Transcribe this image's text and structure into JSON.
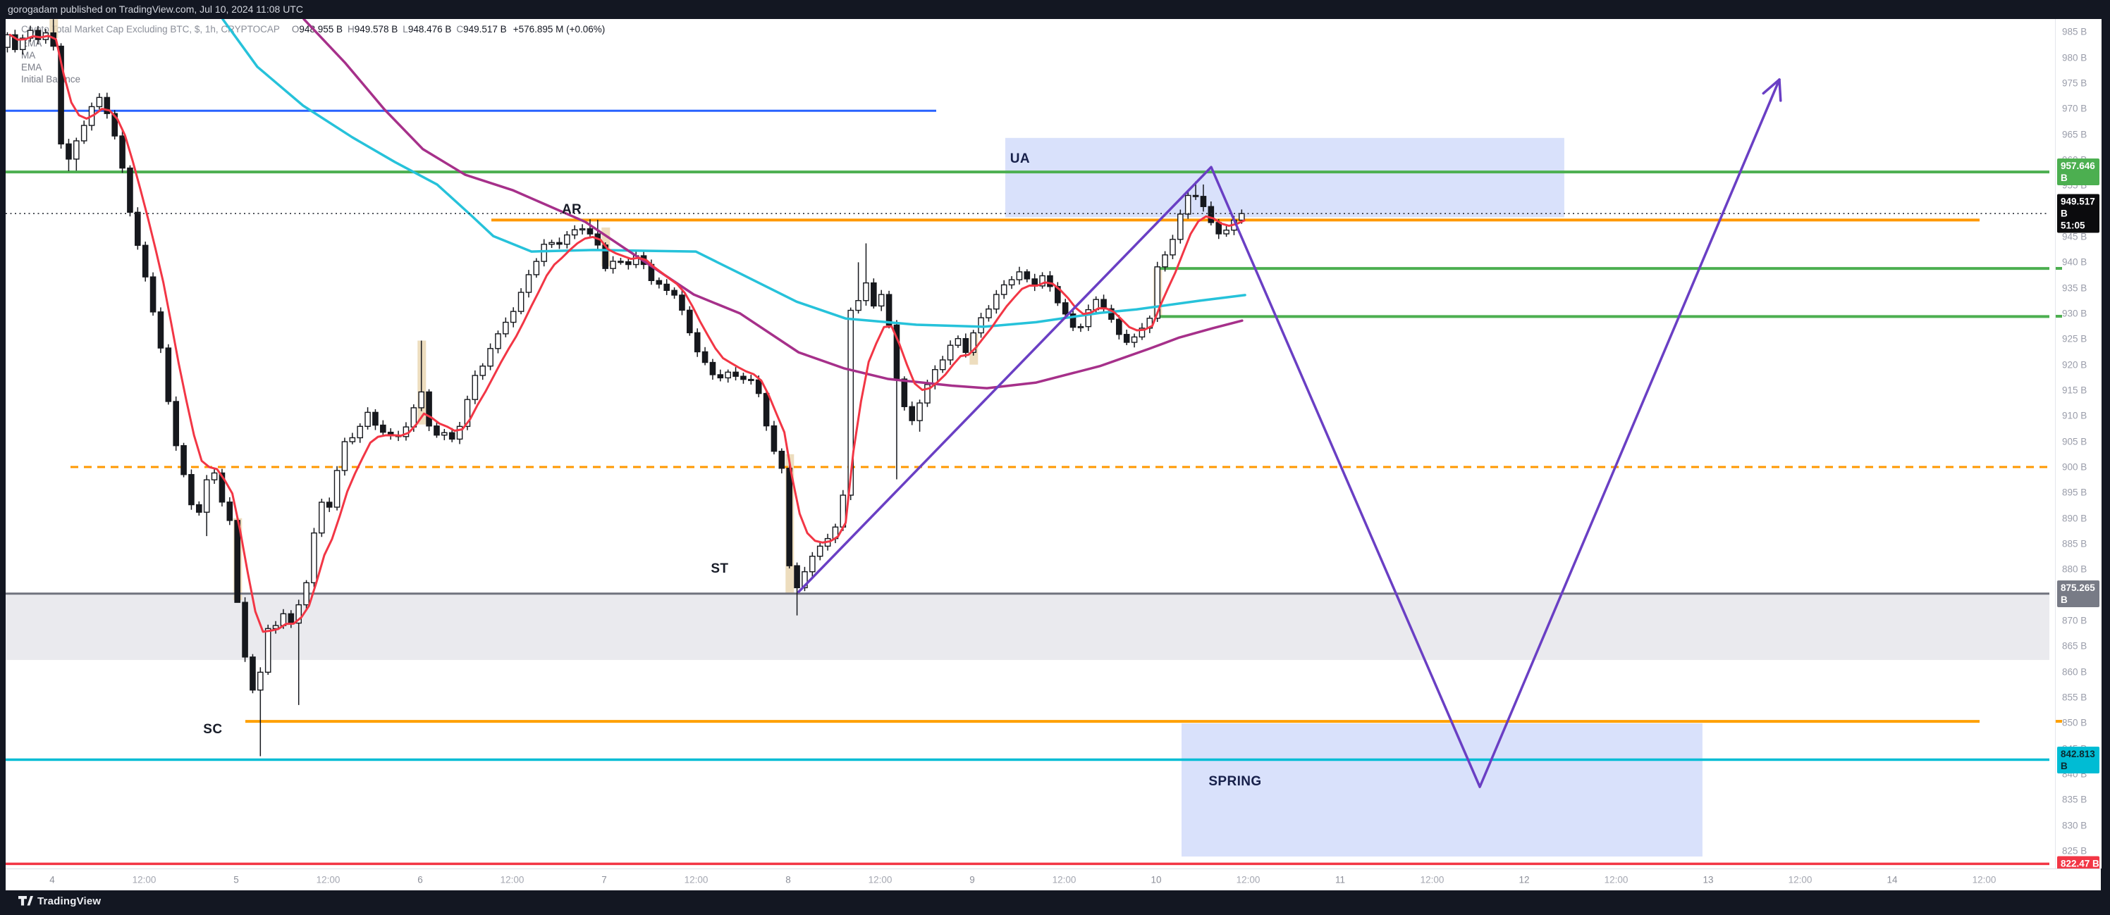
{
  "top_bar": {
    "text": "gorogadam published on TradingView.com, Jul 10, 2024 11:08 UTC"
  },
  "footer": {
    "brand": "TradingView"
  },
  "legend": {
    "title": "Crypto Total Market Cap Excluding BTC, $, 1h, CRYPTOCAP",
    "o_k": "O",
    "o_v": "948.955 B",
    "h_k": "H",
    "h_v": "949.578 B",
    "l_k": "L",
    "l_v": "948.476 B",
    "c_k": "C",
    "c_v": "949.517 B",
    "change": "+576.895 M (+0.06%)",
    "indicators": [
      "EMA",
      "MA",
      "EMA",
      "Initial Balance"
    ]
  },
  "annotations": {
    "ua": "UA",
    "ar": "AR",
    "st": "ST",
    "sc": "SC",
    "spring": "SPRING"
  },
  "chart_data": {
    "type": "candlestick",
    "title": "Crypto Total Market Cap Excluding BTC",
    "currency": "$",
    "interval": "1h",
    "exchange": "CRYPTOCAP",
    "last_bar": {
      "open": 948.955,
      "high": 949.578,
      "low": 948.476,
      "close": 949.517,
      "change": "+576.895 M",
      "change_pct": "+0.06%"
    },
    "current_price": 949.517,
    "countdown": "51:05",
    "ylim": [
      822,
      989
    ],
    "xlabel_days": [
      "Jul 4",
      "Jul 14"
    ],
    "grid": false,
    "price_path": [
      [
        -0.25,
        982
      ],
      [
        -0.21,
        984
      ],
      [
        -0.17,
        981.5
      ],
      [
        -0.125,
        983.5
      ],
      [
        -0.08,
        985
      ],
      [
        -0.04,
        984
      ],
      [
        0,
        985
      ],
      [
        0.04,
        983
      ],
      [
        0.08,
        964
      ],
      [
        0.125,
        960
      ],
      [
        0.17,
        963.5
      ],
      [
        0.21,
        967
      ],
      [
        0.25,
        970
      ],
      [
        0.29,
        972
      ],
      [
        0.33,
        970
      ],
      [
        0.37,
        965.5
      ],
      [
        0.42,
        958
      ],
      [
        0.46,
        950
      ],
      [
        0.5,
        943
      ],
      [
        0.54,
        937
      ],
      [
        0.58,
        931
      ],
      [
        0.62,
        924
      ],
      [
        0.66,
        914
      ],
      [
        0.7,
        906
      ],
      [
        0.74,
        900
      ],
      [
        0.78,
        894
      ],
      [
        0.82,
        890
      ],
      [
        0.86,
        895
      ],
      [
        0.9,
        900.5
      ],
      [
        0.93,
        897
      ],
      [
        0.96,
        893
      ],
      [
        1.0,
        889
      ],
      [
        1.04,
        874
      ],
      [
        1.08,
        864
      ],
      [
        1.12,
        857
      ],
      [
        1.15,
        853
      ],
      [
        1.18,
        866
      ],
      [
        1.22,
        870
      ],
      [
        1.26,
        868
      ],
      [
        1.3,
        872
      ],
      [
        1.34,
        869
      ],
      [
        1.38,
        873
      ],
      [
        1.42,
        878
      ],
      [
        1.46,
        888
      ],
      [
        1.5,
        893
      ],
      [
        1.53,
        888.5
      ],
      [
        1.56,
        899
      ],
      [
        1.6,
        900
      ],
      [
        1.64,
        907
      ],
      [
        1.68,
        905
      ],
      [
        1.72,
        909
      ],
      [
        1.76,
        910.5
      ],
      [
        1.8,
        908
      ],
      [
        1.84,
        907
      ],
      [
        1.88,
        906
      ],
      [
        1.92,
        906.5
      ],
      [
        1.96,
        908
      ],
      [
        2.0,
        911
      ],
      [
        2.04,
        915
      ],
      [
        2.08,
        908
      ],
      [
        2.12,
        905.5
      ],
      [
        2.16,
        907.5
      ],
      [
        2.2,
        905.5
      ],
      [
        2.24,
        906.5
      ],
      [
        2.28,
        912
      ],
      [
        2.32,
        918
      ],
      [
        2.36,
        917.5
      ],
      [
        2.4,
        922
      ],
      [
        2.44,
        925
      ],
      [
        2.48,
        926.5
      ],
      [
        2.53,
        930
      ],
      [
        2.58,
        934
      ],
      [
        2.63,
        938
      ],
      [
        2.67,
        941
      ],
      [
        2.72,
        944
      ],
      [
        2.77,
        943
      ],
      [
        2.82,
        944.5
      ],
      [
        2.87,
        946
      ],
      [
        2.92,
        947.2
      ],
      [
        2.96,
        945.5
      ],
      [
        3.0,
        943.5
      ],
      [
        3.05,
        938.5
      ],
      [
        3.1,
        940.5
      ],
      [
        3.15,
        939
      ],
      [
        3.2,
        941
      ],
      [
        3.25,
        939.5
      ],
      [
        3.3,
        936.5
      ],
      [
        3.36,
        935
      ],
      [
        3.42,
        934
      ],
      [
        3.47,
        929
      ],
      [
        3.52,
        924
      ],
      [
        3.58,
        920
      ],
      [
        3.64,
        917.5
      ],
      [
        3.7,
        918.5
      ],
      [
        3.76,
        918
      ],
      [
        3.82,
        917
      ],
      [
        3.87,
        915
      ],
      [
        3.91,
        909
      ],
      [
        3.95,
        903
      ],
      [
        4.0,
        900
      ],
      [
        4.042,
        881
      ],
      [
        4.08,
        876
      ],
      [
        4.125,
        880
      ],
      [
        4.17,
        883
      ],
      [
        4.21,
        884
      ],
      [
        4.25,
        886
      ],
      [
        4.29,
        888
      ],
      [
        4.33,
        891
      ],
      [
        4.375,
        931
      ],
      [
        4.42,
        933
      ],
      [
        4.46,
        936
      ],
      [
        4.5,
        932
      ],
      [
        4.54,
        934
      ],
      [
        4.58,
        928
      ],
      [
        4.62,
        918
      ],
      [
        4.66,
        912
      ],
      [
        4.71,
        908.5
      ],
      [
        4.75,
        913
      ],
      [
        4.8,
        917
      ],
      [
        4.85,
        920
      ],
      [
        4.9,
        923
      ],
      [
        4.95,
        925
      ],
      [
        5.0,
        922.5
      ],
      [
        5.05,
        926.5
      ],
      [
        5.1,
        930
      ],
      [
        5.17,
        934
      ],
      [
        5.24,
        937
      ],
      [
        5.3,
        938
      ],
      [
        5.36,
        935
      ],
      [
        5.42,
        937
      ],
      [
        5.48,
        934
      ],
      [
        5.54,
        930
      ],
      [
        5.6,
        926.5
      ],
      [
        5.66,
        930
      ],
      [
        5.72,
        933
      ],
      [
        5.78,
        929
      ],
      [
        5.84,
        925.5
      ],
      [
        5.9,
        924.5
      ],
      [
        5.95,
        927
      ],
      [
        6.0,
        929.5
      ],
      [
        6.04,
        938.5
      ],
      [
        6.08,
        941
      ],
      [
        6.12,
        944
      ],
      [
        6.16,
        948
      ],
      [
        6.2,
        953
      ],
      [
        6.24,
        954
      ],
      [
        6.28,
        951.5
      ],
      [
        6.32,
        949
      ],
      [
        6.36,
        946.5
      ],
      [
        6.4,
        944.8
      ],
      [
        6.44,
        947
      ],
      [
        6.48,
        949.517
      ]
    ],
    "wick_overrides": [
      {
        "t": 0.0,
        "high": 987.5
      },
      {
        "t": 0.083,
        "low": 957.8
      },
      {
        "t": 0.125,
        "low": 957.9
      },
      {
        "t": 0.833,
        "low": 886.5
      },
      {
        "t": 1.0,
        "low": 875.5
      },
      {
        "t": 1.125,
        "low": 843.5
      },
      {
        "t": 1.333,
        "low": 853.5
      },
      {
        "t": 2.0,
        "high": 924.7
      },
      {
        "t": 2.917,
        "high": 948.4
      },
      {
        "t": 2.958,
        "high": 948.3
      },
      {
        "t": 4.042,
        "low": 871
      },
      {
        "t": 4.375,
        "high": 940
      },
      {
        "t": 4.417,
        "high": 943.7
      },
      {
        "t": 4.583,
        "low": 897.6
      },
      {
        "t": 4.708,
        "low": 906.9
      },
      {
        "t": 6.208,
        "high": 955.8
      },
      {
        "t": 6.25,
        "high": 955.2
      }
    ],
    "ma_cyan": [
      [
        0.927,
        987.5
      ],
      [
        1.115,
        978.2
      ],
      [
        1.364,
        970.6
      ],
      [
        1.632,
        964.4
      ],
      [
        1.862,
        959.6
      ],
      [
        2.092,
        955.2
      ],
      [
        2.276,
        949.2
      ],
      [
        2.398,
        945.1
      ],
      [
        2.605,
        942.1
      ],
      [
        2.946,
        942.4
      ],
      [
        3.498,
        942.1
      ],
      [
        3.739,
        937.8
      ],
      [
        4.046,
        932.3
      ],
      [
        4.314,
        929.0
      ],
      [
        4.697,
        927.8
      ],
      [
        5.061,
        927.4
      ],
      [
        5.348,
        928.3
      ],
      [
        5.693,
        930.1
      ],
      [
        5.893,
        930.8
      ],
      [
        6.237,
        932.5
      ],
      [
        6.483,
        933.6
      ]
    ],
    "ma_magenta": [
      [
        1.368,
        987.5
      ],
      [
        1.594,
        978.9
      ],
      [
        1.805,
        969.9
      ],
      [
        2.015,
        962.1
      ],
      [
        2.245,
        957.1
      ],
      [
        2.502,
        954.1
      ],
      [
        2.897,
        947.9
      ],
      [
        3.487,
        933.7
      ],
      [
        3.739,
        930.0
      ],
      [
        4.057,
        922.4
      ],
      [
        4.302,
        919.3
      ],
      [
        4.544,
        917.2
      ],
      [
        4.889,
        915.9
      ],
      [
        5.08,
        915.4
      ],
      [
        5.348,
        916.5
      ],
      [
        5.693,
        919.7
      ],
      [
        5.962,
        923.1
      ],
      [
        6.126,
        925.3
      ],
      [
        6.306,
        927.1
      ],
      [
        6.467,
        928.6
      ]
    ],
    "ema_fast_period": 5,
    "initial_balance_boxes": [
      {
        "t": 0,
        "hi": 987.5,
        "lo": 983.8
      },
      {
        "t": 1,
        "hi": 890,
        "lo": 874
      },
      {
        "t": 2,
        "hi": 924.7,
        "lo": 908.3
      },
      {
        "t": 3,
        "hi": 946.8,
        "lo": 939.2
      },
      {
        "t": 4,
        "hi": 902.5,
        "lo": 875.3
      },
      {
        "t": 5,
        "hi": 926,
        "lo": 920
      },
      {
        "t": 6,
        "hi": 938.8,
        "lo": 929.3
      }
    ],
    "band": {
      "name": "gray-zone",
      "top": 875.265,
      "bottom": 862.3,
      "x1": 8,
      "x2": 2907,
      "fill": "#eaeaee"
    },
    "levels": [
      {
        "name": "blue-resistance",
        "price": 969.6,
        "x1": 8,
        "x2": 1328,
        "color": "#2962ff",
        "w": 3
      },
      {
        "name": "green-957",
        "price": 957.646,
        "x1": 8,
        "x2": 2907,
        "color": "#4caf50",
        "w": 4
      },
      {
        "name": "orange-ar",
        "price": 948.25,
        "x1": 697,
        "x2": 2808,
        "color": "#ff9800",
        "w": 4
      },
      {
        "name": "green-ib-high",
        "price": 938.8,
        "x1": 1642,
        "x2": 2907,
        "color": "#4caf50",
        "w": 4
      },
      {
        "name": "green-ib-low",
        "price": 929.4,
        "x1": 1642,
        "x2": 2907,
        "color": "#4caf50",
        "w": 4
      },
      {
        "name": "orange-dashed-900",
        "price": 900,
        "x1": 100,
        "x2": 2907,
        "color": "#ff9800",
        "w": 3,
        "dash": "11 8"
      },
      {
        "name": "gray-875",
        "price": 875.265,
        "x1": 8,
        "x2": 2907,
        "color": "#70737e",
        "w": 3
      },
      {
        "name": "orange-850",
        "price": 850.3,
        "x1": 348,
        "x2": 2808,
        "color": "#ffa000",
        "w": 4
      },
      {
        "name": "cyan-842",
        "price": 842.813,
        "x1": 8,
        "x2": 2907,
        "color": "#00bcd4",
        "w": 3.5
      },
      {
        "name": "red-822",
        "price": 822.47,
        "x1": 8,
        "x2": 2907,
        "color": "#f23645",
        "w": 3.5
      }
    ],
    "boxes": [
      {
        "name": "ua-box",
        "t1": 5.18,
        "t2": 8.218,
        "p1": 964.3,
        "p2": 948.8,
        "fill": "#d9e1fb"
      },
      {
        "name": "spring-box",
        "t1": 6.138,
        "t2": 8.969,
        "p1": 849.9,
        "p2": 823.9,
        "fill": "#d9e1fb"
      }
    ],
    "zigzag": {
      "color": "#6a3fc4",
      "w": 3.5,
      "arrow": true,
      "points": [
        [
          4.057,
          875.6
        ],
        [
          6.299,
          958.6
        ],
        [
          7.759,
          837.5
        ],
        [
          9.387,
          975.7
        ]
      ]
    },
    "label_pos": [
      {
        "id": "anno-ua",
        "t": 5.26,
        "p": 960.1
      },
      {
        "id": "anno-ar",
        "t": 2.824,
        "p": 950.2
      },
      {
        "id": "anno-st",
        "t": 3.628,
        "p": 880.0
      },
      {
        "id": "anno-sc",
        "t": 0.873,
        "p": 848.6
      },
      {
        "id": "anno-spring",
        "t": 6.429,
        "p": 838.5
      }
    ],
    "price_ticks": [
      "985 B",
      "980 B",
      "975 B",
      "970 B",
      "965 B",
      "960 B",
      "955 B",
      "950 B",
      "945 B",
      "940 B",
      "935 B",
      "930 B",
      "925 B",
      "920 B",
      "915 B",
      "910 B",
      "905 B",
      "900 B",
      "895 B",
      "890 B",
      "885 B",
      "880 B",
      "875 B",
      "870 B",
      "865 B",
      "860 B",
      "855 B",
      "850 B",
      "845 B",
      "840 B",
      "835 B",
      "830 B",
      "825 B"
    ],
    "price_tick_values": [
      985,
      980,
      975,
      970,
      965,
      960,
      955,
      950,
      945,
      940,
      935,
      930,
      925,
      920,
      915,
      910,
      905,
      900,
      895,
      890,
      885,
      880,
      875,
      870,
      865,
      860,
      855,
      850,
      845,
      840,
      835,
      830,
      825
    ],
    "badges": [
      {
        "name": "level-badge-green",
        "text": "957.646 B",
        "price": 957.646,
        "bg": "#4caf50",
        "fg": "#ffffff"
      },
      {
        "name": "current-price-badge",
        "text": "949.517 B",
        "sub": "51:05",
        "price": 949.517,
        "bg": "#0b0b0d",
        "fg": "#ffffff"
      },
      {
        "name": "level-badge-gray",
        "text": "875.265 B",
        "price": 875.265,
        "bg": "#787b86",
        "fg": "#ffffff"
      },
      {
        "name": "level-badge-cyan",
        "text": "842.813 B",
        "price": 842.813,
        "bg": "#00bcd4",
        "fg": "#0b2a30"
      },
      {
        "name": "level-badge-red",
        "text": "822.47 B",
        "price": 822.47,
        "bg": "#f23645",
        "fg": "#ffffff"
      }
    ],
    "side_ticks": [
      {
        "price": 938.8,
        "color": "#4caf50"
      },
      {
        "price": 929.4,
        "color": "#4caf50"
      },
      {
        "price": 850.3,
        "color": "#ffa000"
      }
    ],
    "time_ticks": [
      {
        "label": "4",
        "t": 0,
        "major": true
      },
      {
        "label": "12:00",
        "t": 0.5
      },
      {
        "label": "5",
        "t": 1,
        "major": true
      },
      {
        "label": "12:00",
        "t": 1.5
      },
      {
        "label": "6",
        "t": 2,
        "major": true
      },
      {
        "label": "12:00",
        "t": 2.5
      },
      {
        "label": "7",
        "t": 3,
        "major": true
      },
      {
        "label": "12:00",
        "t": 3.5
      },
      {
        "label": "8",
        "t": 4,
        "major": true
      },
      {
        "label": "12:00",
        "t": 4.5
      },
      {
        "label": "9",
        "t": 5,
        "major": true
      },
      {
        "label": "12:00",
        "t": 5.5
      },
      {
        "label": "10",
        "t": 6,
        "major": true
      },
      {
        "label": "12:00",
        "t": 6.5
      },
      {
        "label": "11",
        "t": 7,
        "major": true
      },
      {
        "label": "12:00",
        "t": 7.5
      },
      {
        "label": "12",
        "t": 8,
        "major": true
      },
      {
        "label": "12:00",
        "t": 8.5
      },
      {
        "label": "13",
        "t": 9,
        "major": true
      },
      {
        "label": "12:00",
        "t": 9.5
      },
      {
        "label": "14",
        "t": 10,
        "major": true
      },
      {
        "label": "12:00",
        "t": 10.5
      }
    ],
    "colors": {
      "up_body": "#ffffff",
      "down_body": "#16181d",
      "candle_stroke": "#16181d",
      "ema_fast": "#f23645",
      "ma_cyan": "#26c2da",
      "ma_magenta": "#a6308a",
      "dotted_price": "#2b2f38",
      "ib_box": "#e9d5ae"
    }
  }
}
